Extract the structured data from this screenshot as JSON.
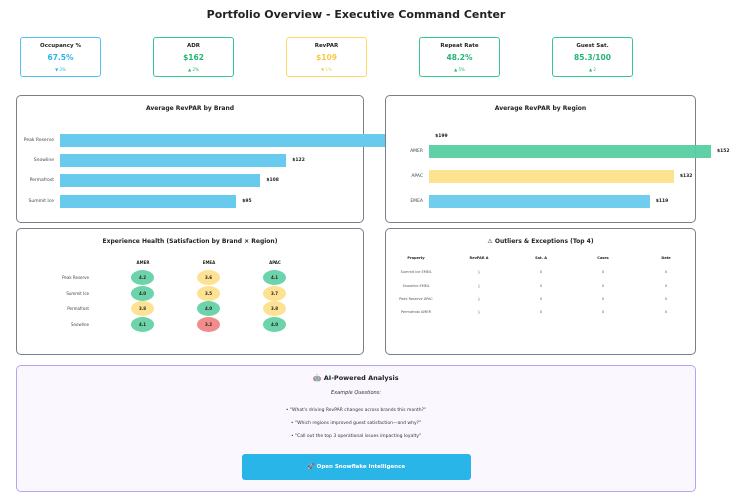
{
  "title": "Portfolio Overview - Executive Command Center",
  "kpis": [
    {
      "label": "Occupancy %",
      "value": "67.5%",
      "delta": "▼ 3%",
      "color": "#4fc3f7",
      "vcolor": "#29b5e8"
    },
    {
      "label": "ADR",
      "value": "$162",
      "delta": "▲ 2%",
      "color": "#34c88a",
      "vcolor": "#22b573"
    },
    {
      "label": "RevPAR",
      "value": "$109",
      "delta": "▼ 1%",
      "color": "#fcd967",
      "vcolor": "#f7c843"
    },
    {
      "label": "Repeat Rate",
      "value": "48.2%",
      "delta": "▲ 5%",
      "color": "#34c88a",
      "vcolor": "#22b573"
    },
    {
      "label": "Guest Sat.",
      "value": "85.3/100",
      "delta": "▲ 2",
      "color": "#34c88a",
      "vcolor": "#22b573"
    }
  ],
  "chart_data": [
    {
      "type": "bar",
      "title": "Average RevPAR by Brand",
      "categories": [
        "Peak Reserve",
        "Snowline",
        "Permafrost",
        "Summit Ice"
      ],
      "values": [
        199,
        122,
        108,
        95
      ],
      "labels": [
        "$199",
        "$122",
        "$108",
        "$95"
      ],
      "colors": [
        "#68caed",
        "#68caed",
        "#68caed",
        "#68caed"
      ]
    },
    {
      "type": "bar",
      "title": "Average RevPAR by Region",
      "categories": [
        "AMER",
        "APAC",
        "EMEA"
      ],
      "values": [
        152,
        132,
        119
      ],
      "labels": [
        "$152",
        "$132",
        "$119"
      ],
      "colors": [
        "#57cfa2",
        "#fde08a",
        "#68caed"
      ]
    },
    {
      "type": "heatmap",
      "title": "Experience Health (Satisfaction by Brand × Region)",
      "columns": [
        "AMER",
        "EMEA",
        "APAC"
      ],
      "rows": [
        "Peak Reserve",
        "Summit Ice",
        "Permafrost",
        "Snowline"
      ],
      "values": [
        [
          4.2,
          3.6,
          4.1
        ],
        [
          4.0,
          3.5,
          3.7
        ],
        [
          3.8,
          4.0,
          3.8
        ],
        [
          4.1,
          3.2,
          4.0
        ]
      ],
      "labels": [
        [
          "4.2",
          "3.6",
          "4.1"
        ],
        [
          "4.0",
          "3.5",
          "3.7"
        ],
        [
          "3.8",
          "4.0",
          "3.8"
        ],
        [
          "4.1",
          "3.2",
          "4.0"
        ]
      ]
    }
  ],
  "outliers": {
    "title": "⚠ Outliers & Exceptions (Top 4)",
    "headers": [
      "Property",
      "RevPAR Δ",
      "Sat. Δ",
      "Cases",
      "Date"
    ],
    "rows": [
      [
        "Summit Ice EMEA",
        "}",
        "0",
        "0",
        "0"
      ],
      [
        "Snowline EMEA",
        "}",
        "0",
        "0",
        "0"
      ],
      [
        "Peak Reserve APAC",
        "}",
        "0",
        "0",
        "0"
      ],
      [
        "Permafrost AMER",
        "}",
        "0",
        "0",
        "0"
      ]
    ]
  },
  "ai": {
    "title": "🤖 AI-Powered Analysis",
    "subtitle": "Example Questions:",
    "questions": [
      "• \"What's driving RevPAR changes across brands this month?\"",
      "• \"Which regions improved guest satisfaction—and why?\"",
      "• \"Call out the top 3 operational issues impacting loyalty\""
    ],
    "button": "🚀 Open Snowflake Intelligence"
  }
}
